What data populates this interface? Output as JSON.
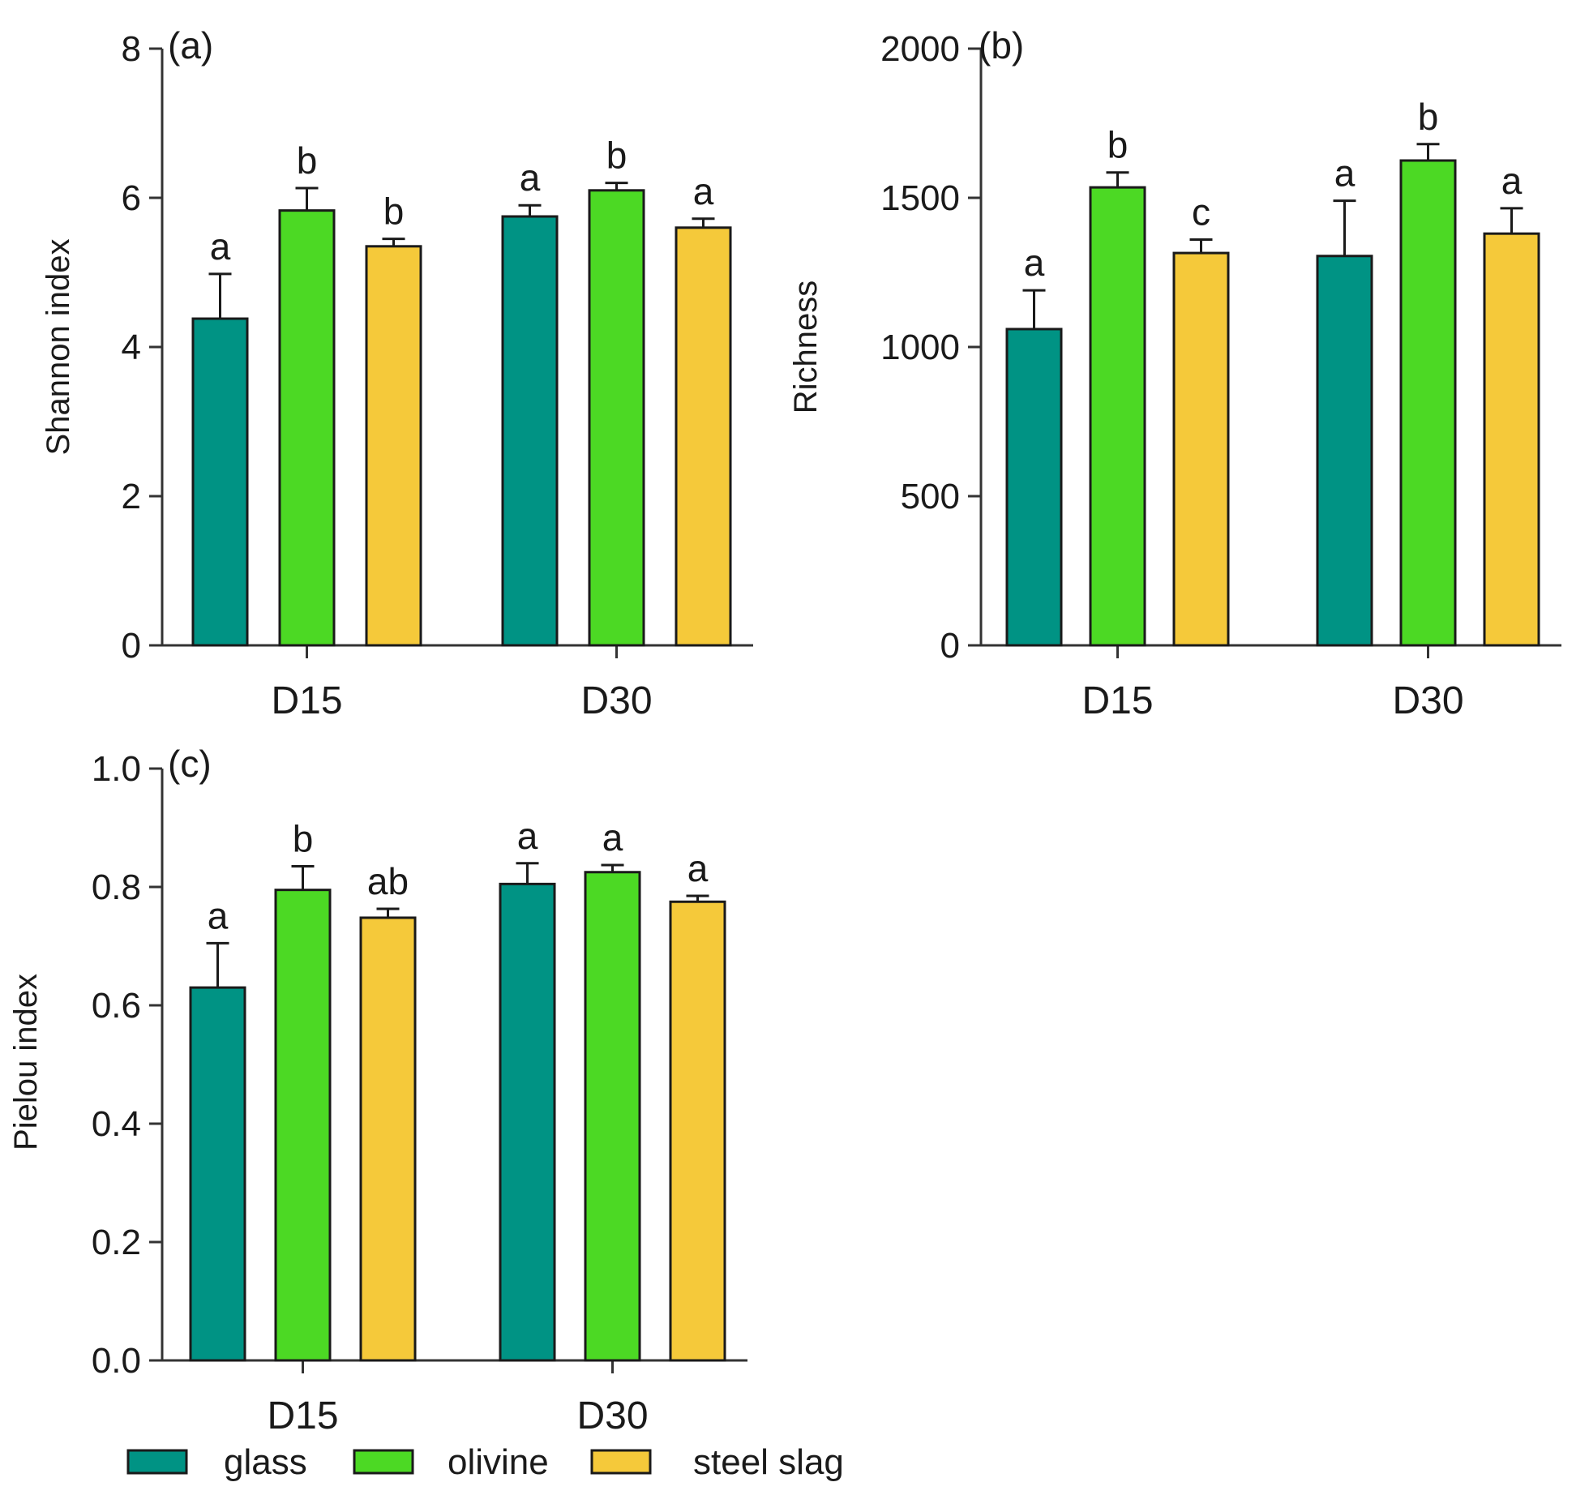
{
  "colors": {
    "glass": "#009384",
    "olivine": "#4cd924",
    "steel_slag": "#f5c93a"
  },
  "legend": [
    {
      "key": "glass",
      "label": "glass"
    },
    {
      "key": "olivine",
      "label": "olivine"
    },
    {
      "key": "steel_slag",
      "label": "steel slag"
    }
  ],
  "chart_data": [
    {
      "type": "bar",
      "panel": "(a)",
      "ylabel": "Shannon index",
      "ylim": [
        0,
        8
      ],
      "yticks": [
        "0",
        "2",
        "4",
        "6",
        "8"
      ],
      "categories": [
        "D15",
        "D30"
      ],
      "series": [
        {
          "name": "glass",
          "values": [
            4.38,
            5.75
          ],
          "errors": [
            0.6,
            0.15
          ],
          "letters": [
            "a",
            "a"
          ]
        },
        {
          "name": "olivine",
          "values": [
            5.83,
            6.1
          ],
          "errors": [
            0.3,
            0.1
          ],
          "letters": [
            "b",
            "b"
          ]
        },
        {
          "name": "steel slag",
          "values": [
            5.35,
            5.6
          ],
          "errors": [
            0.1,
            0.12
          ],
          "letters": [
            "b",
            "a"
          ]
        }
      ]
    },
    {
      "type": "bar",
      "panel": "(b)",
      "ylabel": "Richness",
      "ylim": [
        0,
        2000
      ],
      "yticks": [
        "0",
        "500",
        "1000",
        "1500",
        "2000"
      ],
      "categories": [
        "D15",
        "D30"
      ],
      "series": [
        {
          "name": "glass",
          "values": [
            1060,
            1305
          ],
          "errors": [
            130,
            185
          ],
          "letters": [
            "a",
            "a"
          ]
        },
        {
          "name": "olivine",
          "values": [
            1535,
            1625
          ],
          "errors": [
            50,
            55
          ],
          "letters": [
            "b",
            "b"
          ]
        },
        {
          "name": "steel slag",
          "values": [
            1315,
            1380
          ],
          "errors": [
            45,
            85
          ],
          "letters": [
            "c",
            "a"
          ]
        }
      ]
    },
    {
      "type": "bar",
      "panel": "(c)",
      "ylabel": "Pielou index",
      "ylim": [
        0,
        1.0
      ],
      "yticks": [
        "0.0",
        "0.2",
        "0.4",
        "0.6",
        "0.8",
        "1.0"
      ],
      "categories": [
        "D15",
        "D30"
      ],
      "series": [
        {
          "name": "glass",
          "values": [
            0.63,
            0.805
          ],
          "errors": [
            0.075,
            0.035
          ],
          "letters": [
            "a",
            "a"
          ]
        },
        {
          "name": "olivine",
          "values": [
            0.795,
            0.825
          ],
          "errors": [
            0.04,
            0.012
          ],
          "letters": [
            "b",
            "a"
          ]
        },
        {
          "name": "steel slag",
          "values": [
            0.748,
            0.775
          ],
          "errors": [
            0.015,
            0.01
          ],
          "letters": [
            "ab",
            "a"
          ]
        }
      ]
    }
  ]
}
